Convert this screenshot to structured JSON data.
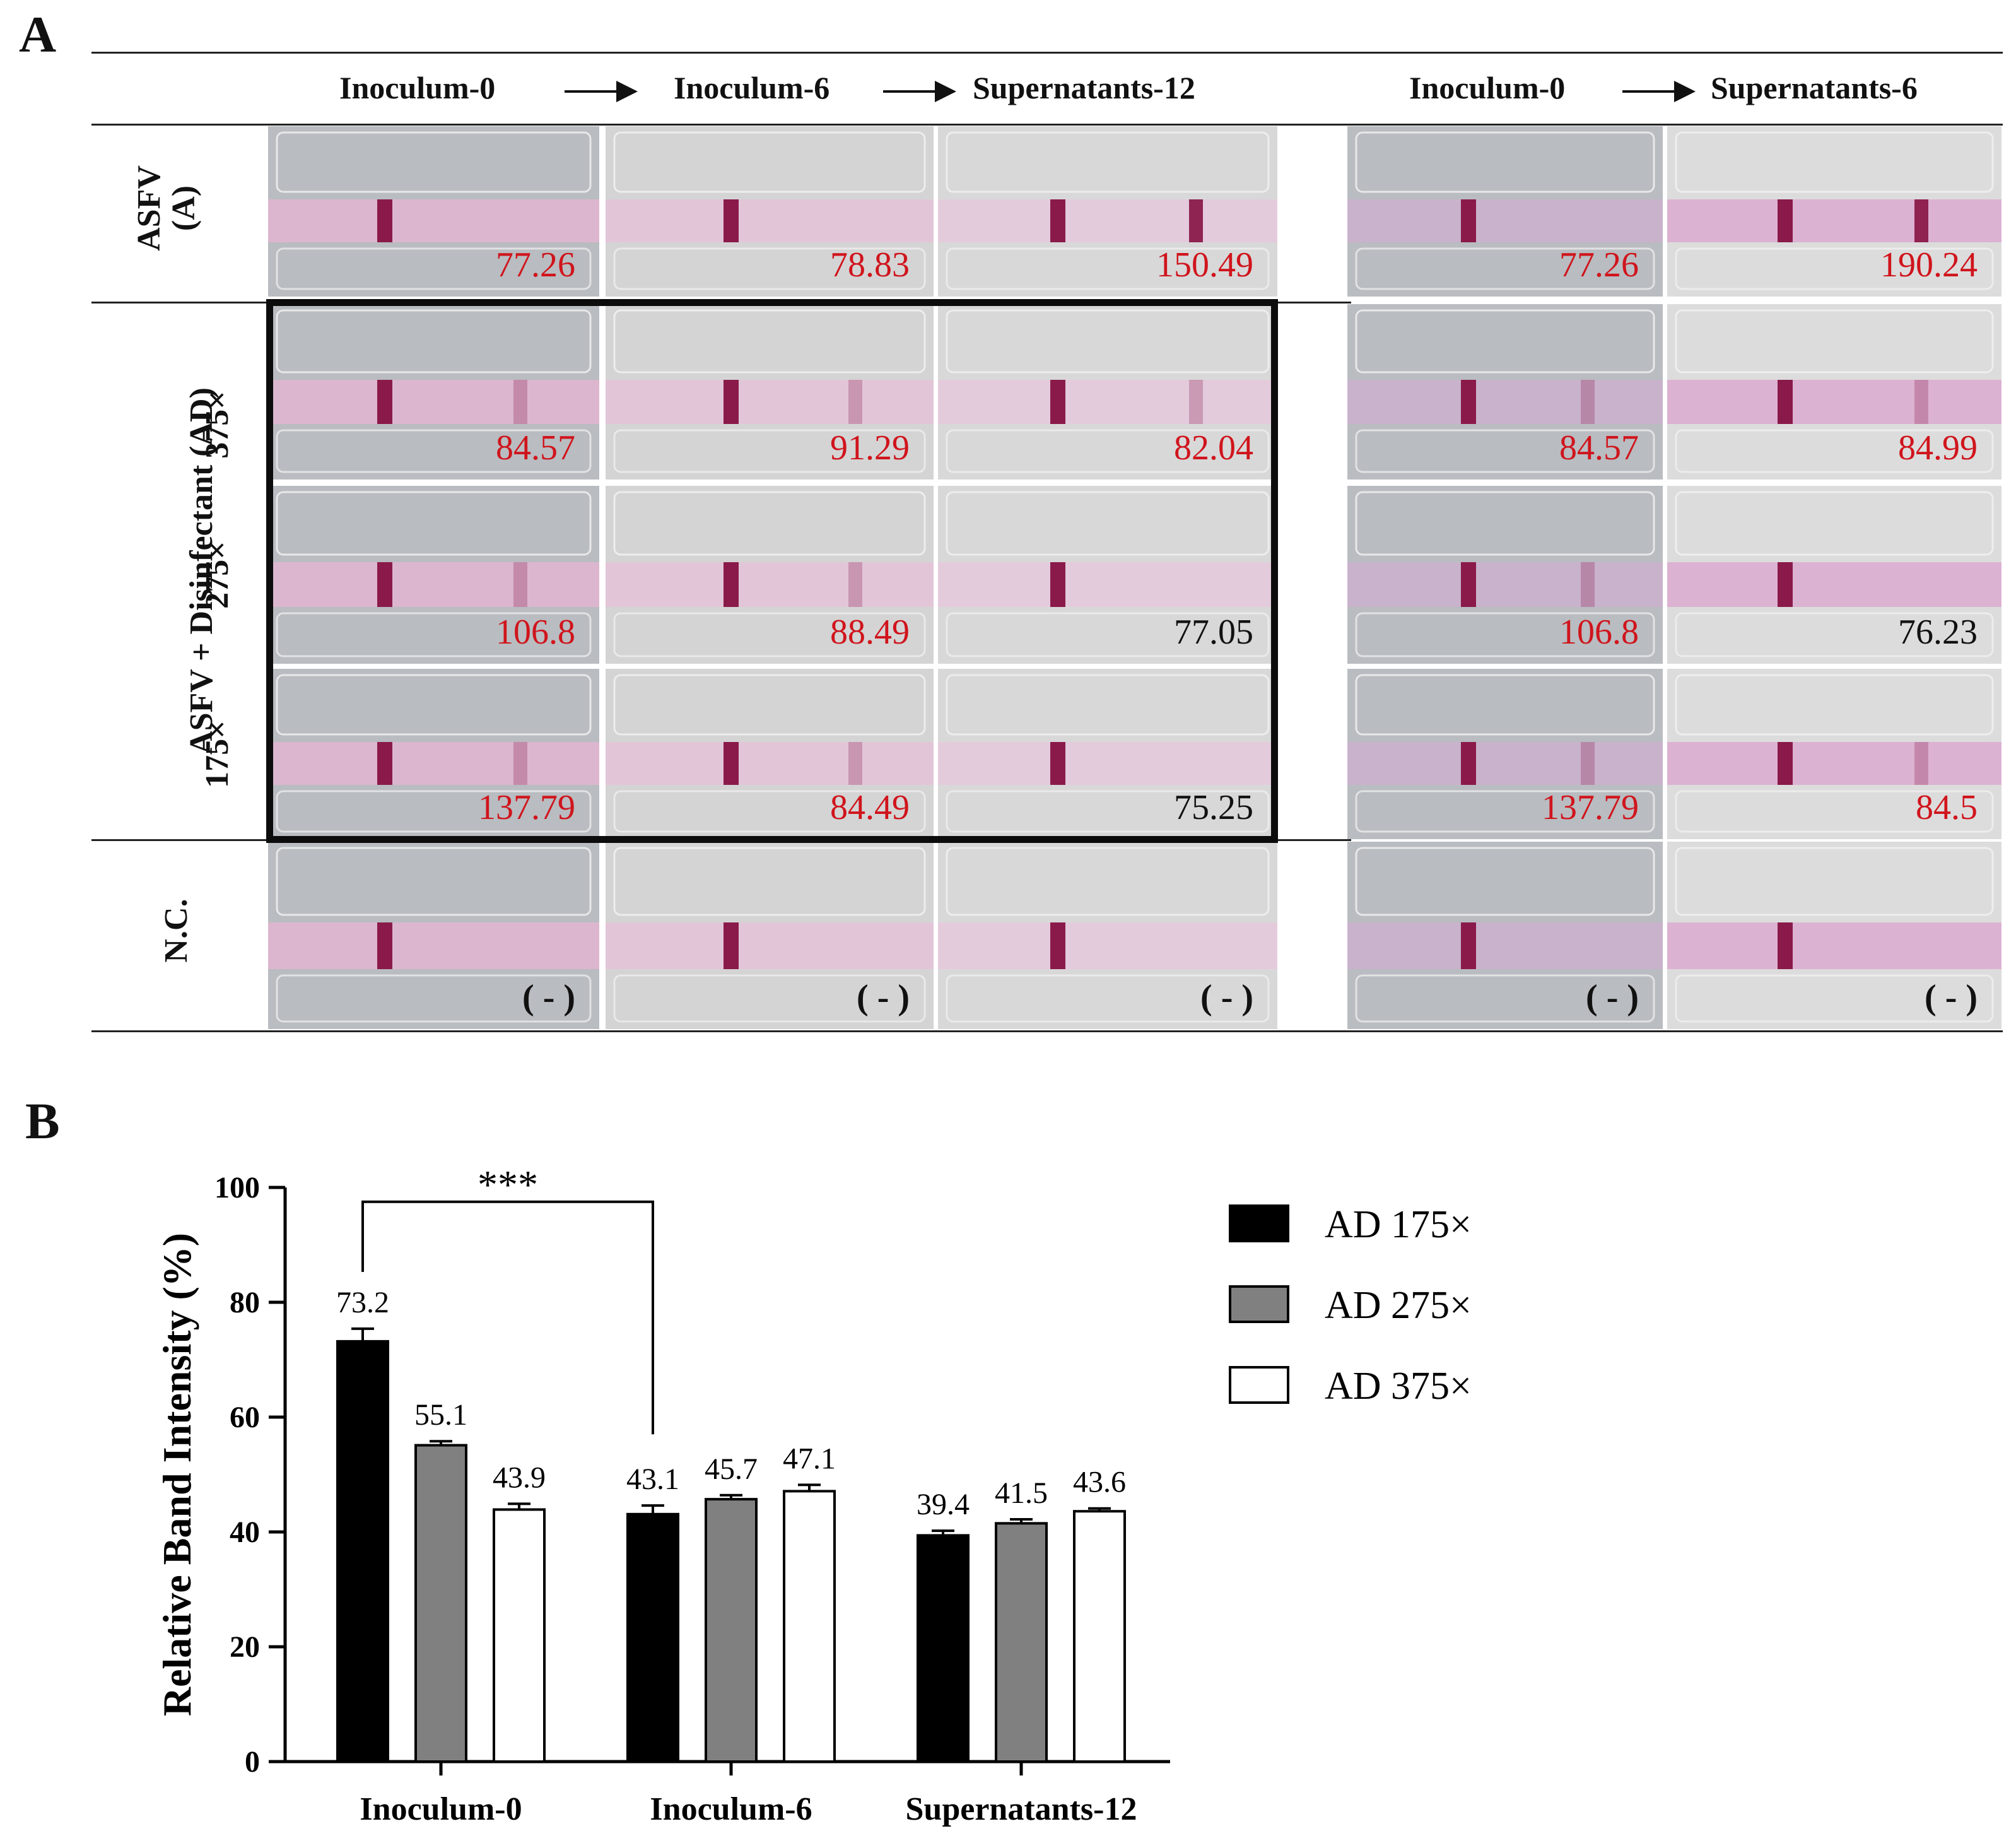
{
  "panel_a": {
    "letter": "A",
    "group1_headers": [
      "Inoculum-0",
      "Inoculum-6",
      "Supernatants-12"
    ],
    "group2_headers": [
      "Inoculum-0",
      "Supernatants-6"
    ],
    "row_labels": {
      "asfv_line1": "ASFV",
      "asfv_line2": "(A)",
      "ad_group": "ASFV + Disinfectant (AD)",
      "dil_375": "375×",
      "dil_275": "275×",
      "dil_175": "175×",
      "nc": "N.C."
    },
    "rows": [
      {
        "id": "asfv",
        "values": [
          {
            "text": "77.26",
            "style": "red"
          },
          {
            "text": "78.83",
            "style": "red"
          },
          {
            "text": "150.49",
            "style": "red"
          },
          {
            "text": "77.26",
            "style": "red"
          },
          {
            "text": "190.24",
            "style": "red"
          }
        ]
      },
      {
        "id": "375",
        "values": [
          {
            "text": "84.57",
            "style": "red"
          },
          {
            "text": "91.29",
            "style": "red"
          },
          {
            "text": "82.04",
            "style": "red"
          },
          {
            "text": "84.57",
            "style": "red"
          },
          {
            "text": "84.99",
            "style": "red"
          }
        ]
      },
      {
        "id": "275",
        "values": [
          {
            "text": "106.8",
            "style": "red"
          },
          {
            "text": "88.49",
            "style": "red"
          },
          {
            "text": "77.05",
            "style": "blk"
          },
          {
            "text": "106.8",
            "style": "red"
          },
          {
            "text": "76.23",
            "style": "blk"
          }
        ]
      },
      {
        "id": "175",
        "values": [
          {
            "text": "137.79",
            "style": "red"
          },
          {
            "text": "84.49",
            "style": "red"
          },
          {
            "text": "75.25",
            "style": "blk"
          },
          {
            "text": "137.79",
            "style": "red"
          },
          {
            "text": "84.5",
            "style": "red"
          }
        ]
      },
      {
        "id": "nc",
        "values": [
          {
            "text": "( - )",
            "style": "neg"
          },
          {
            "text": "( - )",
            "style": "neg"
          },
          {
            "text": "( - )",
            "style": "neg"
          },
          {
            "text": "( - )",
            "style": "neg"
          },
          {
            "text": "( - )",
            "style": "neg"
          }
        ]
      }
    ],
    "colors": {
      "red_value": "#d0141c",
      "test_band": "#8a1a4a",
      "strip": "#dcb6cf"
    }
  },
  "panel_b": {
    "letter": "B",
    "significance": "***",
    "legend": [
      "AD 175×",
      "AD 275×",
      "AD 375×"
    ],
    "bar_labels": [
      [
        "73.2",
        "55.1",
        "43.9"
      ],
      [
        "43.1",
        "45.7",
        "47.1"
      ],
      [
        "39.4",
        "41.5",
        "43.6"
      ]
    ]
  },
  "chart_data": {
    "type": "bar",
    "title": "",
    "xlabel": "",
    "ylabel": "Relative Band Intensity (%)",
    "ylim": [
      0,
      100
    ],
    "yticks": [
      0,
      20,
      40,
      60,
      80,
      100
    ],
    "categories": [
      "Inoculum-0",
      "Inoculum-6",
      "Supernatants-12"
    ],
    "series": [
      {
        "name": "AD 175×",
        "color": "#000000",
        "values": [
          73.2,
          43.1,
          39.4
        ],
        "errors": [
          2.2,
          1.5,
          0.8
        ]
      },
      {
        "name": "AD 275×",
        "color": "#808080",
        "values": [
          55.1,
          45.7,
          41.5
        ],
        "errors": [
          0.7,
          0.7,
          0.7
        ]
      },
      {
        "name": "AD 375×",
        "color": "#ffffff",
        "values": [
          43.9,
          47.1,
          43.6
        ],
        "errors": [
          1.0,
          1.1,
          0.5
        ]
      }
    ],
    "annotation": {
      "text": "***",
      "from": "AD 175× Inoculum-0",
      "to": "AD 175× Inoculum-6"
    },
    "legend_position": "top-right"
  }
}
